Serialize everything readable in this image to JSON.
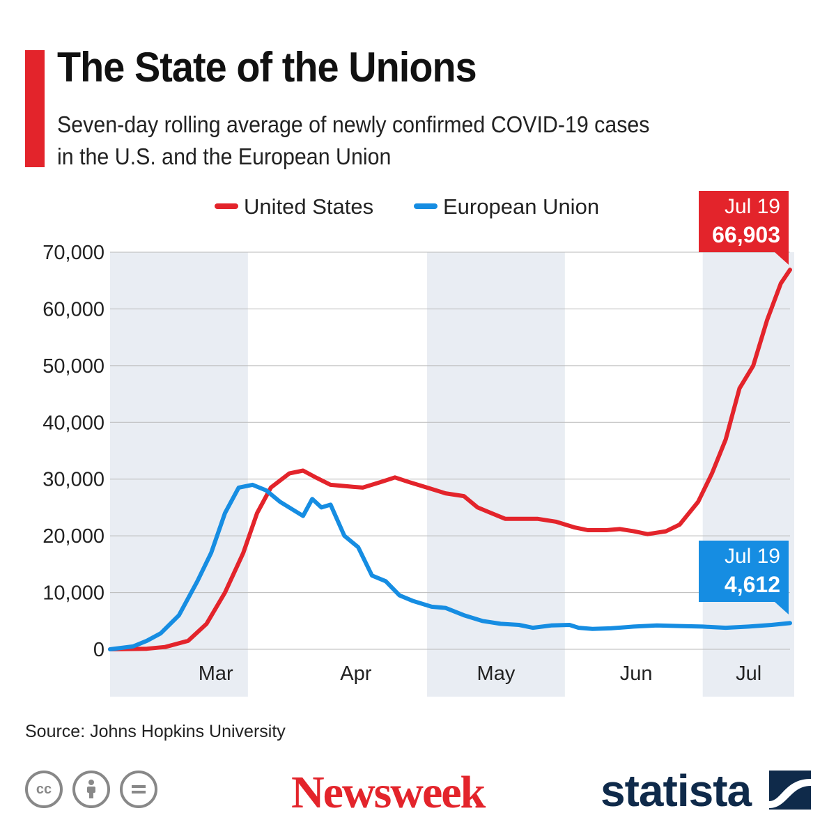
{
  "header": {
    "title": "The State of the Unions",
    "subtitle_line1": "Seven-day rolling average of newly confirmed COVID-19 cases",
    "subtitle_line2": "in the U.S. and the European Union"
  },
  "footer": {
    "source": "Source: Johns Hopkins University",
    "publisher": "Newsweek",
    "brand": "statista",
    "license_icons": [
      "cc-icon",
      "attribution-icon",
      "no-derivatives-icon"
    ]
  },
  "colors": {
    "us": "#e3242b",
    "eu": "#168de2",
    "band": "#e9edf3",
    "grid": "#b9b9b9",
    "accent": "#e3242b"
  },
  "chart_data": {
    "type": "line",
    "x_unit": "day of 2020 (Jan 22 = day 0)",
    "xlim": [
      "2020-02-22",
      "2020-07-19"
    ],
    "ylim": [
      0,
      70000
    ],
    "yticks": [
      0,
      10000,
      20000,
      30000,
      40000,
      50000,
      60000,
      70000
    ],
    "ytick_labels": [
      "0",
      "10,000",
      "20,000",
      "30,000",
      "40,000",
      "50,000",
      "60,000",
      "70,000"
    ],
    "xtick_labels": [
      "Mar",
      "Apr",
      "May",
      "Jun",
      "Jul"
    ],
    "grid": true,
    "legend_position": "top",
    "series": [
      {
        "name": "United States",
        "color": "#e3242b",
        "points": [
          [
            "2020-02-22",
            0
          ],
          [
            "2020-03-01",
            100
          ],
          [
            "2020-03-05",
            400
          ],
          [
            "2020-03-10",
            1500
          ],
          [
            "2020-03-14",
            4500
          ],
          [
            "2020-03-18",
            10000
          ],
          [
            "2020-03-22",
            17000
          ],
          [
            "2020-03-25",
            24000
          ],
          [
            "2020-03-28",
            28500
          ],
          [
            "2020-04-01",
            31000
          ],
          [
            "2020-04-04",
            31500
          ],
          [
            "2020-04-07",
            30200
          ],
          [
            "2020-04-10",
            29000
          ],
          [
            "2020-04-14",
            28700
          ],
          [
            "2020-04-17",
            28500
          ],
          [
            "2020-04-21",
            29500
          ],
          [
            "2020-04-24",
            30300
          ],
          [
            "2020-04-27",
            29500
          ],
          [
            "2020-05-01",
            28500
          ],
          [
            "2020-05-05",
            27500
          ],
          [
            "2020-05-09",
            27000
          ],
          [
            "2020-05-12",
            25000
          ],
          [
            "2020-05-15",
            24000
          ],
          [
            "2020-05-18",
            23000
          ],
          [
            "2020-05-22",
            23000
          ],
          [
            "2020-05-25",
            23000
          ],
          [
            "2020-05-29",
            22500
          ],
          [
            "2020-06-02",
            21500
          ],
          [
            "2020-06-05",
            21000
          ],
          [
            "2020-06-09",
            21000
          ],
          [
            "2020-06-12",
            21200
          ],
          [
            "2020-06-15",
            20800
          ],
          [
            "2020-06-18",
            20300
          ],
          [
            "2020-06-22",
            20800
          ],
          [
            "2020-06-25",
            22000
          ],
          [
            "2020-06-29",
            26000
          ],
          [
            "2020-07-02",
            31000
          ],
          [
            "2020-07-05",
            37000
          ],
          [
            "2020-07-08",
            46000
          ],
          [
            "2020-07-11",
            50000
          ],
          [
            "2020-07-14",
            58000
          ],
          [
            "2020-07-17",
            64500
          ],
          [
            "2020-07-19",
            66903
          ]
        ]
      },
      {
        "name": "European Union",
        "color": "#168de2",
        "points": [
          [
            "2020-02-22",
            0
          ],
          [
            "2020-02-27",
            500
          ],
          [
            "2020-03-01",
            1500
          ],
          [
            "2020-03-04",
            2800
          ],
          [
            "2020-03-08",
            6000
          ],
          [
            "2020-03-12",
            12000
          ],
          [
            "2020-03-15",
            17000
          ],
          [
            "2020-03-18",
            24000
          ],
          [
            "2020-03-21",
            28500
          ],
          [
            "2020-03-24",
            29000
          ],
          [
            "2020-03-27",
            28000
          ],
          [
            "2020-03-30",
            26000
          ],
          [
            "2020-04-02",
            24500
          ],
          [
            "2020-04-04",
            23500
          ],
          [
            "2020-04-06",
            26500
          ],
          [
            "2020-04-08",
            25000
          ],
          [
            "2020-04-10",
            25500
          ],
          [
            "2020-04-13",
            20000
          ],
          [
            "2020-04-16",
            18000
          ],
          [
            "2020-04-19",
            13000
          ],
          [
            "2020-04-22",
            12000
          ],
          [
            "2020-04-25",
            9500
          ],
          [
            "2020-04-28",
            8500
          ],
          [
            "2020-05-02",
            7500
          ],
          [
            "2020-05-05",
            7300
          ],
          [
            "2020-05-09",
            6000
          ],
          [
            "2020-05-13",
            5000
          ],
          [
            "2020-05-17",
            4500
          ],
          [
            "2020-05-21",
            4300
          ],
          [
            "2020-05-24",
            3800
          ],
          [
            "2020-05-28",
            4200
          ],
          [
            "2020-06-01",
            4300
          ],
          [
            "2020-06-03",
            3800
          ],
          [
            "2020-06-06",
            3600
          ],
          [
            "2020-06-10",
            3700
          ],
          [
            "2020-06-15",
            4000
          ],
          [
            "2020-06-20",
            4200
          ],
          [
            "2020-06-25",
            4100
          ],
          [
            "2020-06-30",
            4000
          ],
          [
            "2020-07-05",
            3800
          ],
          [
            "2020-07-10",
            4000
          ],
          [
            "2020-07-15",
            4300
          ],
          [
            "2020-07-19",
            4612
          ]
        ]
      }
    ],
    "annotations": [
      {
        "series": "United States",
        "date_label": "Jul 19",
        "value_label": "66,903"
      },
      {
        "series": "European Union",
        "date_label": "Jul 19",
        "value_label": "4,612"
      }
    ]
  }
}
